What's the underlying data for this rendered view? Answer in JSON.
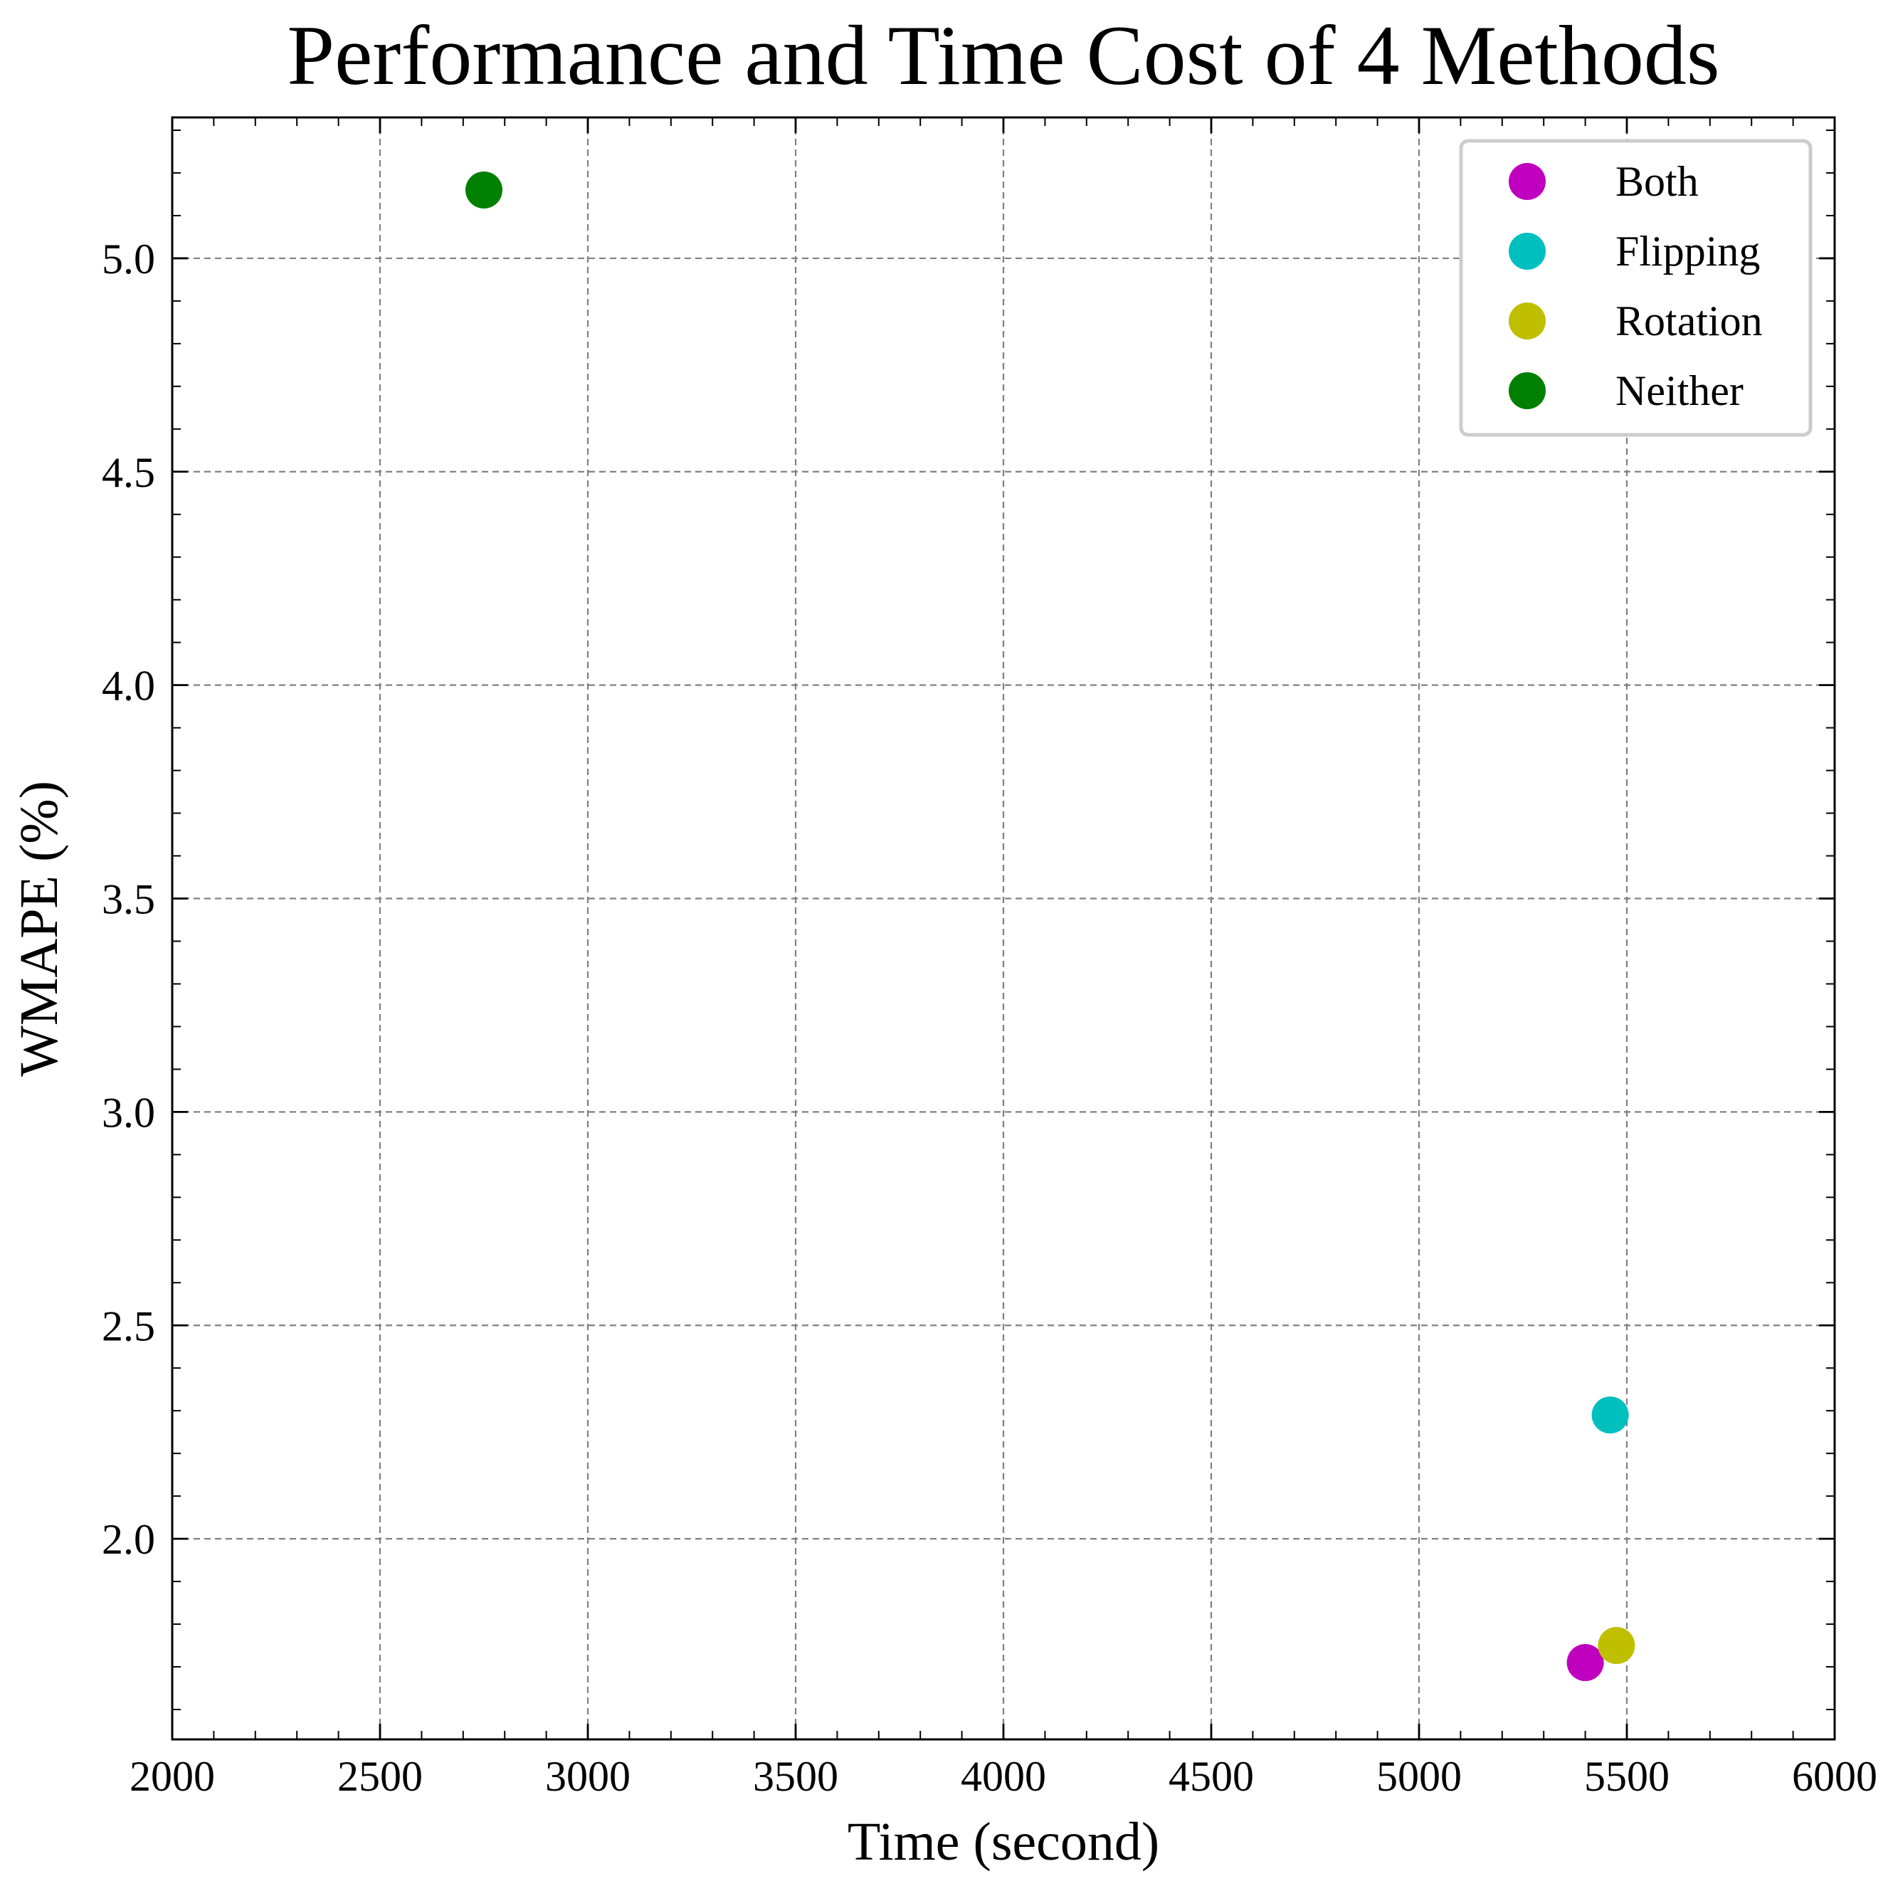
{
  "chart_data": {
    "type": "scatter",
    "title": "Performance and Time Cost of 4 Methods",
    "xlabel": "Time (second)",
    "ylabel": "WMAPE (%)",
    "xlim": [
      2000,
      6000
    ],
    "ylim": [
      1.53,
      5.33
    ],
    "x_ticks": [
      2000,
      2500,
      3000,
      3500,
      4000,
      4500,
      5000,
      5500,
      6000
    ],
    "x_tick_labels": [
      "2000",
      "2500",
      "3000",
      "3500",
      "4000",
      "4500",
      "5000",
      "5500",
      "6000"
    ],
    "y_ticks": [
      2.0,
      2.5,
      3.0,
      3.5,
      4.0,
      4.5,
      5.0
    ],
    "y_tick_labels": [
      "2.0",
      "2.5",
      "3.0",
      "3.5",
      "4.0",
      "4.5",
      "5.0"
    ],
    "grid": true,
    "legend_position": "top-right",
    "series": [
      {
        "name": "Both",
        "color": "#bf00bf",
        "points": [
          {
            "x": 5400,
            "y": 1.71
          }
        ]
      },
      {
        "name": "Flipping",
        "color": "#00bfbf",
        "points": [
          {
            "x": 5460,
            "y": 2.29
          }
        ]
      },
      {
        "name": "Rotation",
        "color": "#bfbf00",
        "points": [
          {
            "x": 5475,
            "y": 1.75
          }
        ]
      },
      {
        "name": "Neither",
        "color": "#008000",
        "points": [
          {
            "x": 2750,
            "y": 5.16
          }
        ]
      }
    ]
  }
}
